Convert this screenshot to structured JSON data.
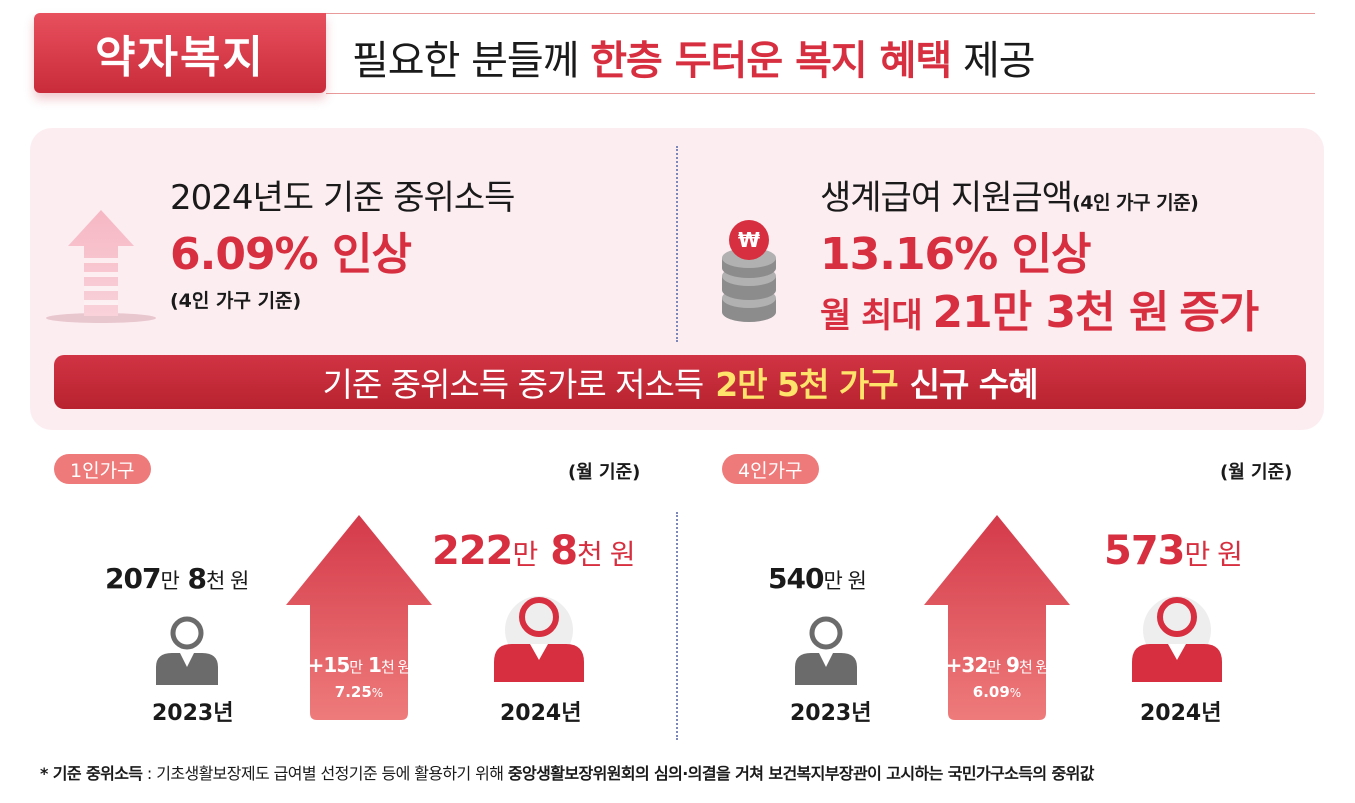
{
  "header": {
    "tag": "약자복지",
    "headline_pre": "필요한 분들께",
    "headline_hl": "한층 두터운 복지 혜택",
    "headline_post": "제공"
  },
  "left_block": {
    "title": "2024년도 기준 중위소득",
    "big": "6.09% 인상",
    "sub": "(4인 가구 기준)"
  },
  "right_block": {
    "title": "생계급여 지원금액",
    "title_small": "(4인 가구 기준)",
    "big": "13.16% 인상",
    "monthly_pre": "월 최대",
    "monthly_amount": "21만 3천 원",
    "monthly_post": "증가"
  },
  "banner": {
    "pre": "기준 중위소득 증가로 저소득",
    "highlight": "2만 5천 가구",
    "post": "신규 수혜"
  },
  "panels": [
    {
      "label": "1인가구",
      "unit_note": "(월 기준)",
      "old_num1": "207",
      "old_unit1": "만",
      "old_num2": "8",
      "old_unit2": "천 원",
      "new_num1": "222",
      "new_unit1": "만",
      "new_num2": "8",
      "new_unit2": "천 원",
      "inc_num1": "+15",
      "inc_unit1": "만",
      "inc_num2": "1",
      "inc_unit2": "천 원",
      "rate": "7.25",
      "rate_unit": "%",
      "year_old": "2023년",
      "year_new": "2024년"
    },
    {
      "label": "4인가구",
      "unit_note": "(월 기준)",
      "old_num1": "540",
      "old_unit1": "만 원",
      "new_num1": "573",
      "new_unit1": "만 원",
      "inc_num1": "+32",
      "inc_unit1": "만",
      "inc_num2": "9",
      "inc_unit2": "천 원",
      "rate": "6.09",
      "rate_unit": "%",
      "year_old": "2023년",
      "year_new": "2024년"
    }
  ],
  "footnote": {
    "term": "* 기준 중위소득",
    "colon": " : ",
    "desc": "기초생활보장제도 급여별 선정기준 등에 활용하기 위해 ",
    "desc_bold": "중앙생활보장위원회의 심의·의결을 거쳐 보건복지부장관이 고시하는 국민가구소득의 중위값"
  },
  "colors": {
    "accent": "#d72f3f",
    "panel_bg": "#fcedf1",
    "banner_highlight": "#ffe36a",
    "pill": "#ef7a7a",
    "old_person": "#6b6b6b"
  },
  "icons": [
    "up-arrow-icon",
    "won-coins-icon",
    "person-old-icon",
    "person-new-icon",
    "increase-arrow-icon"
  ]
}
